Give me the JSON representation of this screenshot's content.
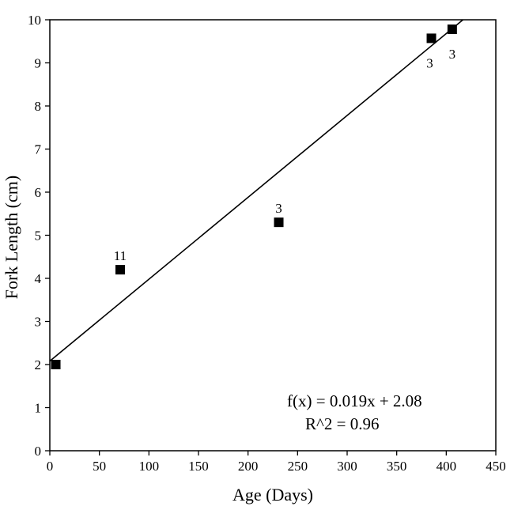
{
  "chart_data": {
    "type": "scatter",
    "xlabel": "Age (Days)",
    "ylabel": "Fork Length (cm)",
    "xlim": [
      0,
      450
    ],
    "ylim": [
      0,
      10
    ],
    "xticks": [
      "0",
      "50",
      "100",
      "150",
      "200",
      "250",
      "300",
      "350",
      "400",
      "450"
    ],
    "yticks": [
      "0",
      "1",
      "2",
      "3",
      "4",
      "5",
      "6",
      "7",
      "8",
      "9",
      "10"
    ],
    "grid": false,
    "legend": "none",
    "points": [
      {
        "x": 6,
        "y": 2.0,
        "label": ""
      },
      {
        "x": 71,
        "y": 4.2,
        "label": "11"
      },
      {
        "x": 231,
        "y": 5.3,
        "label": "3"
      },
      {
        "x": 385,
        "y": 9.57,
        "label": "3"
      },
      {
        "x": 406,
        "y": 9.78,
        "label": "3"
      }
    ],
    "trendline": {
      "slope": 0.019,
      "intercept": 2.08
    },
    "annotations": {
      "equation": "f(x) = 0.019x + 2.08",
      "r_squared": "R^2 = 0.96"
    },
    "colors": {
      "marker": "#000000",
      "line": "#000000",
      "axis": "#000000"
    }
  }
}
